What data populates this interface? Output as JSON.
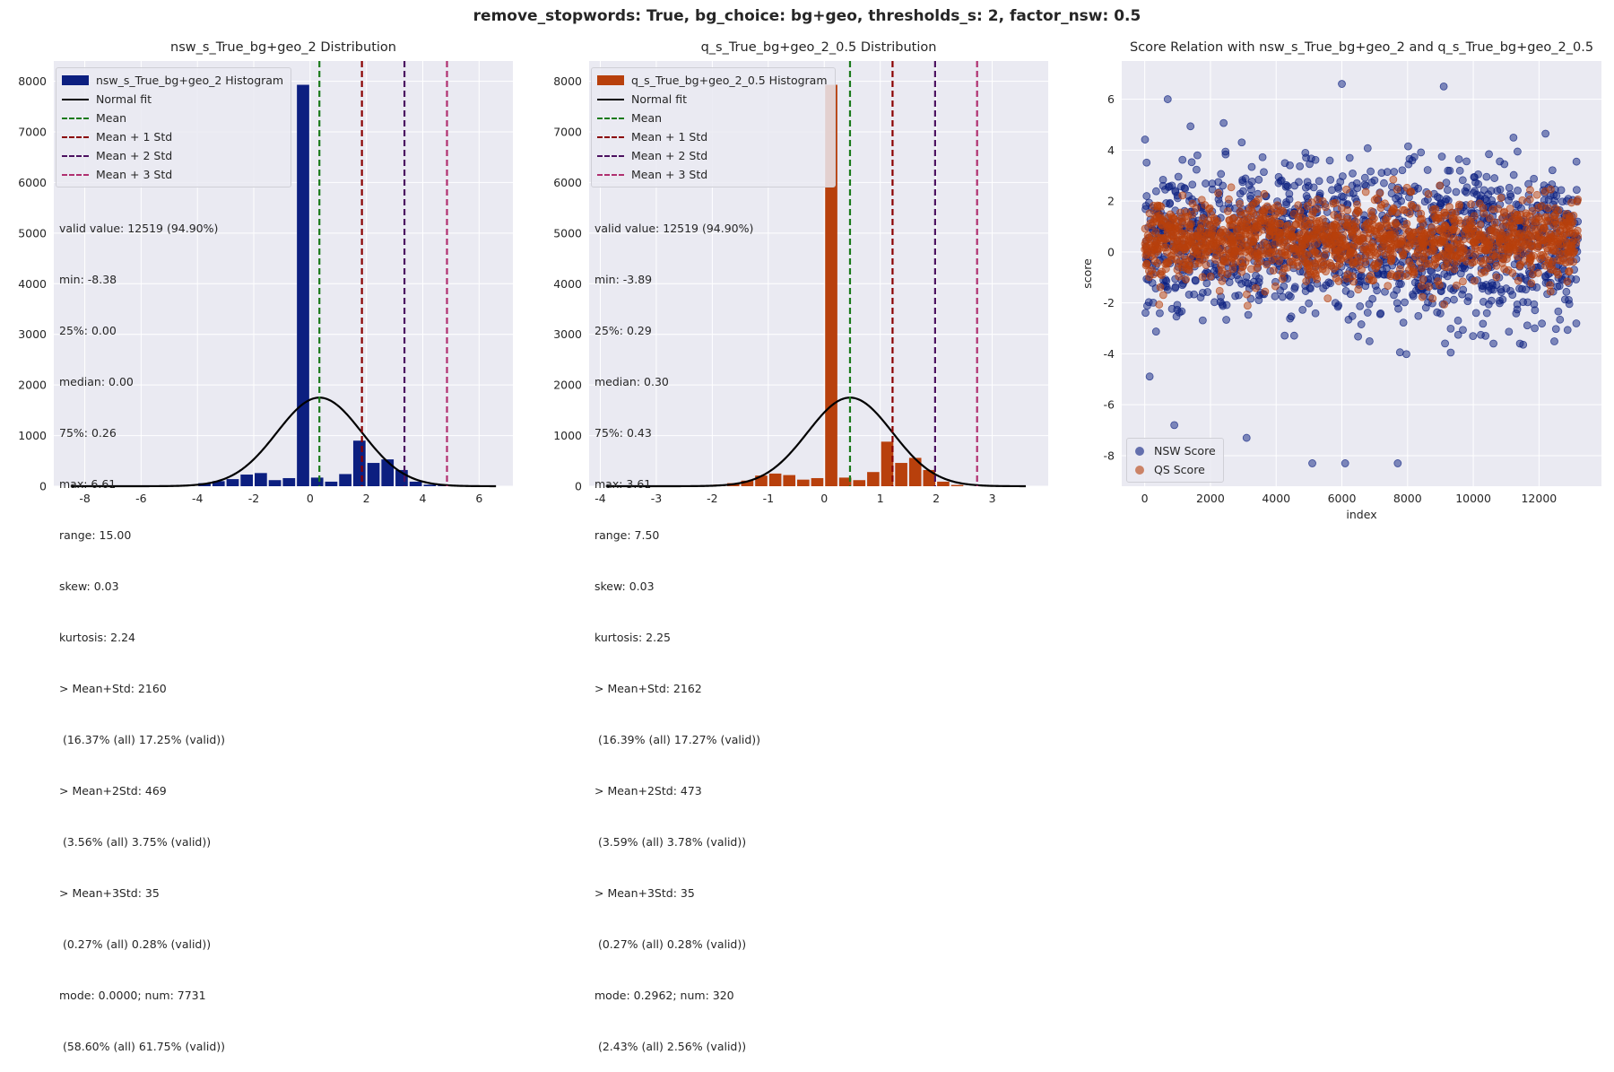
{
  "suptitle": "remove_stopwords: True, bg_choice: bg+geo, thresholds_s: 2, factor_nsw: 0.5",
  "colors": {
    "nsw": "#0c1f80",
    "qs": "#b8400c",
    "mean": "#1a7a1a",
    "std1": "#8b0000",
    "std2": "#4b1160",
    "std3": "#b03070",
    "normal": "#000000",
    "panel_bg": "#eaeaf2",
    "grid": "#ffffff"
  },
  "chart_data": [
    {
      "type": "bar",
      "title": "nsw_s_True_bg+geo_2 Distribution",
      "xlim": [
        -9.1,
        7.2
      ],
      "ylim": [
        0,
        8400
      ],
      "xticks": [
        -8,
        -6,
        -4,
        -2,
        0,
        2,
        4,
        6
      ],
      "yticks": [
        0,
        1000,
        2000,
        3000,
        4000,
        5000,
        6000,
        7000,
        8000
      ],
      "bin_width": 0.5,
      "bins": [
        {
          "x": -3.75,
          "y": 60
        },
        {
          "x": -3.25,
          "y": 100
        },
        {
          "x": -2.75,
          "y": 140
        },
        {
          "x": -2.25,
          "y": 230
        },
        {
          "x": -1.75,
          "y": 260
        },
        {
          "x": -1.25,
          "y": 120
        },
        {
          "x": -0.75,
          "y": 160
        },
        {
          "x": -0.25,
          "y": 7930
        },
        {
          "x": 0.25,
          "y": 170
        },
        {
          "x": 0.75,
          "y": 90
        },
        {
          "x": 1.25,
          "y": 240
        },
        {
          "x": 1.75,
          "y": 900
        },
        {
          "x": 2.25,
          "y": 460
        },
        {
          "x": 2.75,
          "y": 530
        },
        {
          "x": 3.25,
          "y": 320
        },
        {
          "x": 3.75,
          "y": 90
        },
        {
          "x": 4.25,
          "y": 30
        },
        {
          "x": 4.75,
          "y": 15
        }
      ],
      "normal_fit": {
        "mean": 0.33,
        "std": 1.51,
        "peak": 1750,
        "range": [
          -8.5,
          6.6
        ]
      },
      "vlines": {
        "mean": 0.33,
        "std1": 1.84,
        "std2": 3.35,
        "std3": 4.86
      },
      "legend": [
        "nsw_s_True_bg+geo_2 Histogram",
        "Normal fit",
        "Mean",
        "Mean + 1 Std",
        "Mean + 2 Std",
        "Mean + 3 Std"
      ],
      "stats": [
        "valid value: 12519 (94.90%)",
        "min: -8.38",
        "25%: 0.00",
        "median: 0.00",
        "75%: 0.26",
        "max: 6.61",
        "range: 15.00",
        "skew: 0.03",
        "kurtosis: 2.24",
        "> Mean+Std: 2160",
        " (16.37% (all) 17.25% (valid))",
        "> Mean+2Std: 469",
        " (3.56% (all) 3.75% (valid))",
        "> Mean+3Std: 35",
        " (0.27% (all) 0.28% (valid))",
        "mode: 0.0000; num: 7731",
        " (58.60% (all) 61.75% (valid))"
      ]
    },
    {
      "type": "bar",
      "title": "q_s_True_bg+geo_2_0.5 Distribution",
      "xlim": [
        -4.2,
        4.0
      ],
      "ylim": [
        0,
        8400
      ],
      "xticks": [
        -4,
        -3,
        -2,
        -1,
        0,
        1,
        2,
        3
      ],
      "yticks": [
        0,
        1000,
        2000,
        3000,
        4000,
        5000,
        6000,
        7000,
        8000
      ],
      "bin_width": 0.25,
      "bins": [
        {
          "x": -1.875,
          "y": 30
        },
        {
          "x": -1.625,
          "y": 60
        },
        {
          "x": -1.375,
          "y": 110
        },
        {
          "x": -1.125,
          "y": 210
        },
        {
          "x": -0.875,
          "y": 250
        },
        {
          "x": -0.625,
          "y": 220
        },
        {
          "x": -0.375,
          "y": 130
        },
        {
          "x": -0.125,
          "y": 160
        },
        {
          "x": 0.125,
          "y": 7930
        },
        {
          "x": 0.375,
          "y": 170
        },
        {
          "x": 0.625,
          "y": 120
        },
        {
          "x": 0.875,
          "y": 280
        },
        {
          "x": 1.125,
          "y": 880
        },
        {
          "x": 1.375,
          "y": 460
        },
        {
          "x": 1.625,
          "y": 560
        },
        {
          "x": 1.875,
          "y": 320
        },
        {
          "x": 2.125,
          "y": 90
        },
        {
          "x": 2.375,
          "y": 25
        }
      ],
      "normal_fit": {
        "mean": 0.46,
        "std": 0.76,
        "peak": 1750,
        "range": [
          -3.9,
          3.6
        ]
      },
      "vlines": {
        "mean": 0.46,
        "std1": 1.22,
        "std2": 1.98,
        "std3": 2.73
      },
      "legend": [
        "q_s_True_bg+geo_2_0.5 Histogram",
        "Normal fit",
        "Mean",
        "Mean + 1 Std",
        "Mean + 2 Std",
        "Mean + 3 Std"
      ],
      "stats": [
        "valid value: 12519 (94.90%)",
        "min: -3.89",
        "25%: 0.29",
        "median: 0.30",
        "75%: 0.43",
        "max: 3.61",
        "range: 7.50",
        "skew: 0.03",
        "kurtosis: 2.25",
        "> Mean+Std: 2162",
        " (16.39% (all) 17.27% (valid))",
        "> Mean+2Std: 473",
        " (3.59% (all) 3.78% (valid))",
        "> Mean+3Std: 35",
        " (0.27% (all) 0.28% (valid))",
        "mode: 0.2962; num: 320",
        " (2.43% (all) 2.56% (valid))"
      ]
    },
    {
      "type": "scatter",
      "title": "Score Relation with nsw_s_True_bg+geo_2 and q_s_True_bg+geo_2_0.5",
      "xlabel": "index",
      "ylabel": "score",
      "xlim": [
        -700,
        13900
      ],
      "ylim": [
        -9.2,
        7.5
      ],
      "xticks": [
        0,
        2000,
        4000,
        6000,
        8000,
        10000,
        12000
      ],
      "yticks": [
        -8,
        -6,
        -4,
        -2,
        0,
        2,
        4,
        6
      ],
      "n_points": 13190,
      "series": [
        {
          "name": "NSW Score",
          "center": 0.33,
          "spread": 1.5,
          "range": [
            -8.38,
            6.61
          ],
          "highlights": [
            [
              6000,
              6.6
            ],
            [
              9100,
              6.5
            ],
            [
              700,
              6.0
            ],
            [
              5100,
              -8.3
            ],
            [
              6100,
              -8.3
            ],
            [
              7700,
              -8.3
            ],
            [
              3100,
              -7.3
            ],
            [
              900,
              -6.8
            ]
          ]
        },
        {
          "name": "QS Score",
          "center": 0.46,
          "spread": 0.76,
          "range": [
            -3.89,
            3.61
          ]
        }
      ],
      "legend": [
        "NSW Score",
        "QS Score"
      ]
    }
  ]
}
